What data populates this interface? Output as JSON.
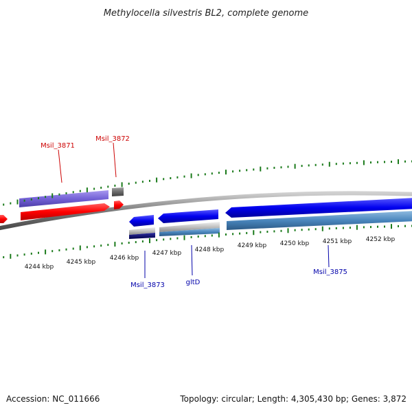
{
  "title": "Methylocella silvestris BL2, complete genome",
  "footer": {
    "accession": "Accession: NC_011666",
    "summary": "Topology: circular; Length: 4,305,430 bp; Genes: 3,872"
  },
  "colors": {
    "forward_cds": "#ff1010",
    "forward_gene": "#7b68d8",
    "reverse_cds": "#1414e6",
    "reverse_gene": "#4682b4",
    "forward_label": "#cc0000",
    "reverse_label": "#0000aa",
    "ticks": "#1a7a1a",
    "backbone": "#8a8a8a"
  },
  "ticks": [
    {
      "label": "4244 kbp"
    },
    {
      "label": "4245 kbp"
    },
    {
      "label": "4246 kbp"
    },
    {
      "label": "4247 kbp"
    },
    {
      "label": "4248 kbp"
    },
    {
      "label": "4249 kbp"
    },
    {
      "label": "4250 kbp"
    },
    {
      "label": "4251 kbp"
    },
    {
      "label": "4252 kbp"
    }
  ],
  "genes": [
    {
      "label": "Msil_3871",
      "strand": "forward"
    },
    {
      "label": "Msil_3872",
      "strand": "forward"
    },
    {
      "label": "Msil_3873",
      "strand": "reverse"
    },
    {
      "label": "gltD",
      "strand": "reverse"
    },
    {
      "label": "Msil_3875",
      "strand": "reverse"
    }
  ]
}
